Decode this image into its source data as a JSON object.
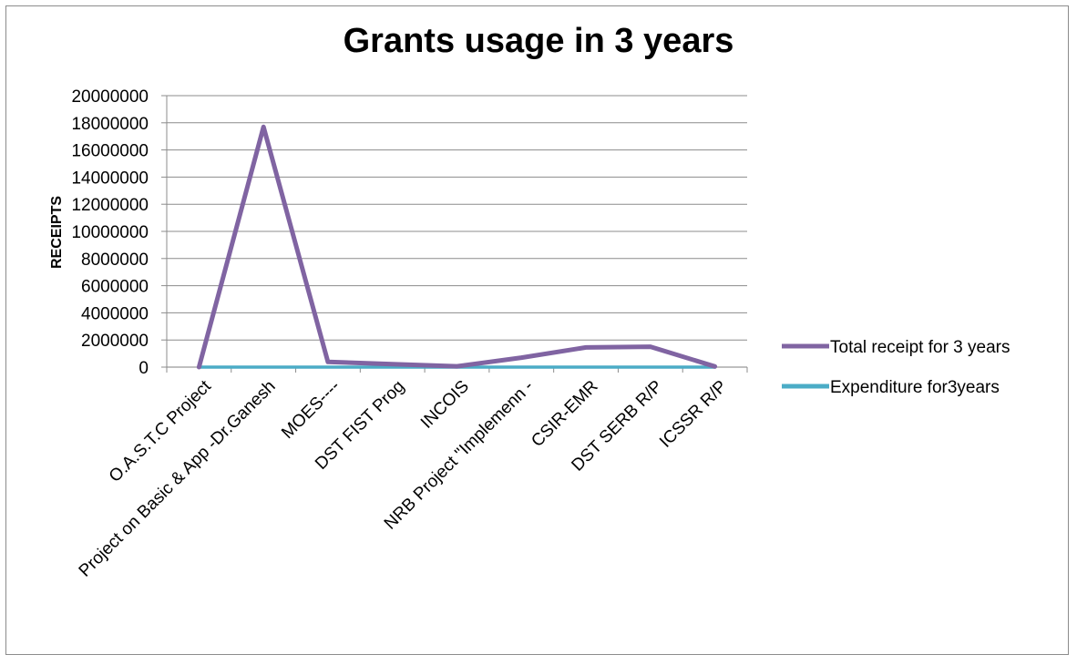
{
  "chart_data": {
    "type": "line",
    "title": "Grants usage in 3 years",
    "xlabel": "",
    "ylabel": "RECEIPTS",
    "ylim": [
      0,
      20000000
    ],
    "yticks": [
      0,
      2000000,
      4000000,
      6000000,
      8000000,
      10000000,
      12000000,
      14000000,
      16000000,
      18000000,
      20000000
    ],
    "grid": true,
    "legend_position": "right",
    "categories": [
      "O.A.S.T.C  Project",
      "Project on Basic &  App -Dr.Ganesh",
      "MOES----",
      "DST FIST Prog",
      "INCOIS",
      "NRB Project \"Implemenn -",
      "CSIR-EMR",
      "DST SERB R/P",
      "ICSSR R/P"
    ],
    "series": [
      {
        "name": "Total receipt for 3 years",
        "color": "#8064a2",
        "values": [
          0,
          17700000,
          380000,
          220000,
          60000,
          700000,
          1450000,
          1500000,
          50000
        ]
      },
      {
        "name": "Expenditure for3years",
        "color": "#4bacc6",
        "values": [
          0,
          0,
          0,
          0,
          0,
          0,
          0,
          0,
          0
        ]
      }
    ]
  }
}
